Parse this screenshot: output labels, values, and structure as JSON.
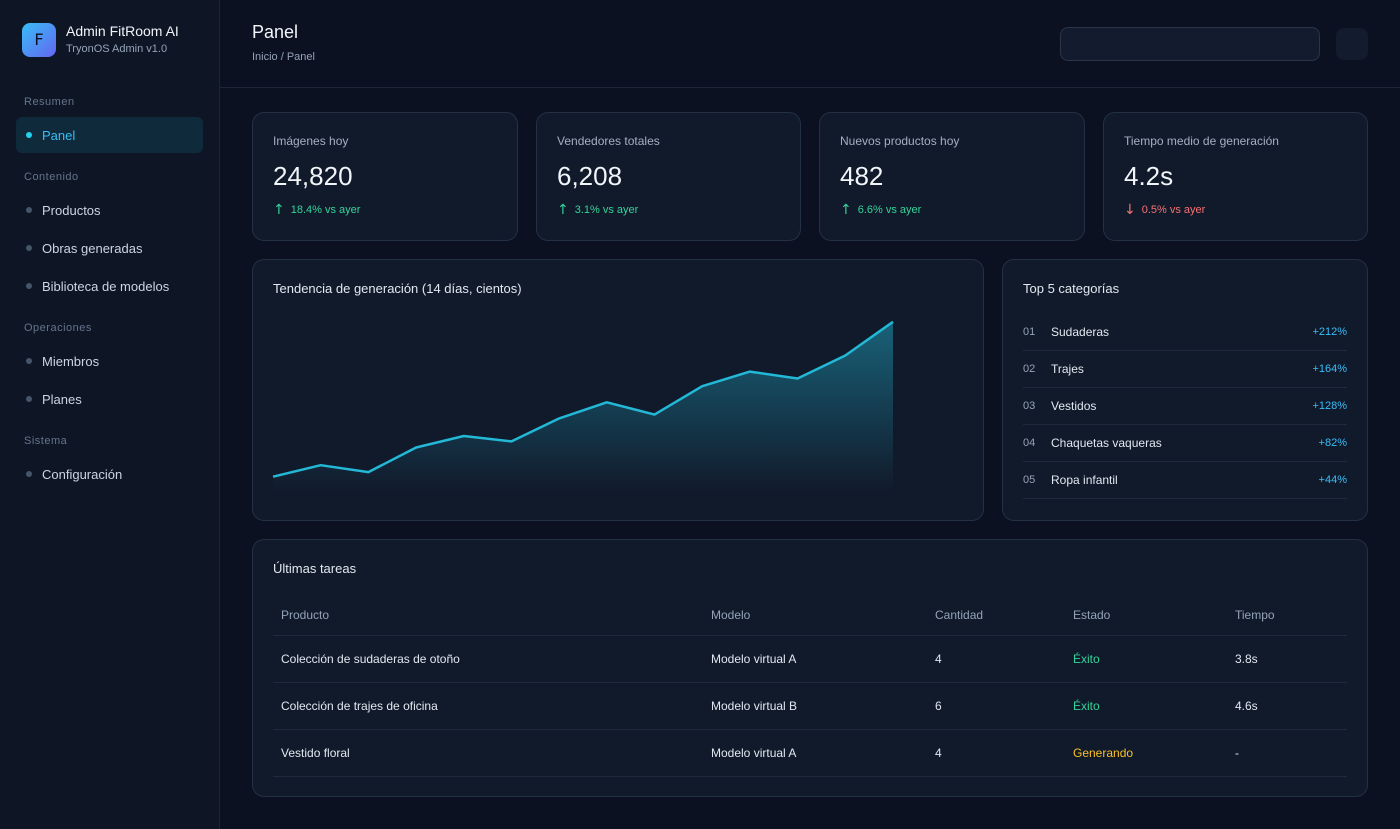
{
  "sidebar": {
    "brand_initial": "F",
    "brand_title": "Admin FitRoom AI",
    "brand_subtitle": "TryonOS Admin v1.0",
    "groups": [
      {
        "label": "Resumen"
      },
      {
        "label": "Contenido"
      },
      {
        "label": "Operaciones"
      },
      {
        "label": "Sistema"
      }
    ],
    "items": [
      {
        "label": "Panel",
        "active": true
      },
      {
        "label": "Productos"
      },
      {
        "label": "Obras generadas"
      },
      {
        "label": "Biblioteca de modelos"
      },
      {
        "label": "Miembros"
      },
      {
        "label": "Planes"
      },
      {
        "label": "Configuración"
      }
    ]
  },
  "header": {
    "title": "Panel",
    "breadcrumb": "Inicio / Panel"
  },
  "stats": [
    {
      "label": "Imágenes hoy",
      "value": "24,820",
      "delta": "18.4% vs ayer",
      "trend": "up"
    },
    {
      "label": "Vendedores totales",
      "value": "6,208",
      "delta": "3.1% vs ayer",
      "trend": "up"
    },
    {
      "label": "Nuevos productos hoy",
      "value": "482",
      "delta": "6.6% vs ayer",
      "trend": "up"
    },
    {
      "label": "Tiempo medio de generación",
      "value": "4.2s",
      "delta": "0.5% vs ayer",
      "trend": "down"
    }
  ],
  "arrows": {
    "up": "↑",
    "down": "↓"
  },
  "trend_chart": {
    "title": "Tendencia de generación (14 días, cientos)"
  },
  "chart_data": {
    "type": "area",
    "title": "Tendencia de generación (14 días, cientos)",
    "x": [
      1,
      2,
      3,
      4,
      5,
      6,
      7,
      8,
      9,
      10,
      11,
      12,
      13,
      14
    ],
    "values": [
      120,
      135,
      126,
      158,
      173,
      166,
      196,
      217,
      201,
      238,
      257,
      248,
      278,
      322
    ],
    "ylim": [
      100,
      340
    ],
    "grid": false,
    "color": "#22b8d6"
  },
  "top_categories": {
    "title": "Top 5 categorías",
    "items": [
      {
        "rank": "01",
        "name": "Sudaderas",
        "value": "+212%"
      },
      {
        "rank": "02",
        "name": "Trajes",
        "value": "+164%"
      },
      {
        "rank": "03",
        "name": "Vestidos",
        "value": "+128%"
      },
      {
        "rank": "04",
        "name": "Chaquetas vaqueras",
        "value": "+82%"
      },
      {
        "rank": "05",
        "name": "Ropa infantil",
        "value": "+44%"
      }
    ]
  },
  "tasks": {
    "title": "Últimas tareas",
    "columns": [
      "Producto",
      "Modelo",
      "Cantidad",
      "Estado",
      "Tiempo"
    ],
    "rows": [
      {
        "product": "Colección de sudaderas de otoño",
        "model": "Modelo virtual A",
        "qty": "4",
        "status": "Éxito",
        "status_kind": "ok",
        "time": "3.8s"
      },
      {
        "product": "Colección de trajes de oficina",
        "model": "Modelo virtual B",
        "qty": "6",
        "status": "Éxito",
        "status_kind": "ok",
        "time": "4.6s"
      },
      {
        "product": "Vestido floral",
        "model": "Modelo virtual A",
        "qty": "4",
        "status": "Generando",
        "status_kind": "gen",
        "time": "-"
      }
    ]
  },
  "colors": {
    "accent": "#22d3ee",
    "up": "#34d399",
    "down": "#f87171",
    "pending": "#fbbf24"
  }
}
